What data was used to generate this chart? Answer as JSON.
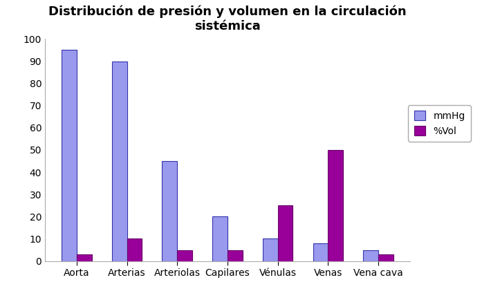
{
  "title": "Distribución de presión y volumen en la circulación\nsistémica",
  "categories": [
    "Aorta",
    "Arterias",
    "Arteriolas",
    "Capilares",
    "Vénulas",
    "Venas",
    "Vena cava"
  ],
  "mmhg_values": [
    95,
    90,
    45,
    20,
    10,
    8,
    5
  ],
  "vol_values": [
    3,
    10,
    5,
    5,
    25,
    50,
    3
  ],
  "mmhg_color": "#9999ee",
  "mmhg_edge_color": "#3333aa",
  "vol_color": "#990099",
  "vol_edge_color": "#660066",
  "ylim": [
    0,
    100
  ],
  "yticks": [
    0,
    10,
    20,
    30,
    40,
    50,
    60,
    70,
    80,
    90,
    100
  ],
  "legend_labels": [
    "mmHg",
    "%Vol"
  ],
  "bar_width": 0.3,
  "title_fontsize": 13,
  "tick_fontsize": 10,
  "legend_fontsize": 10,
  "background_color": "#ffffff",
  "figsize": [
    7.23,
    4.34
  ],
  "dpi": 100
}
